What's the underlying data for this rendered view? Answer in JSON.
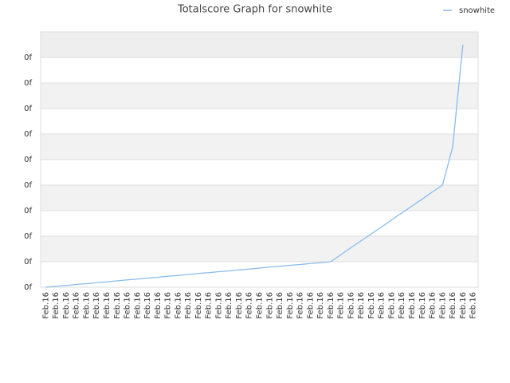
{
  "chart_data": {
    "type": "line",
    "title": "Totalscore Graph for snowhite",
    "categories": [
      "Feb.16",
      "Feb.16",
      "Feb.16",
      "Feb.16",
      "Feb.16",
      "Feb.16",
      "Feb.16",
      "Feb.16",
      "Feb.16",
      "Feb.16",
      "Feb.16",
      "Feb.16",
      "Feb.16",
      "Feb.16",
      "Feb.16",
      "Feb.16",
      "Feb.16",
      "Feb.16",
      "Feb.16",
      "Feb.16",
      "Feb.16",
      "Feb.16",
      "Feb.16",
      "Feb.16",
      "Feb.16",
      "Feb.16",
      "Feb.16",
      "Feb.16",
      "Feb.16",
      "Feb.16",
      "Feb.16",
      "Feb.16",
      "Feb.16",
      "Feb.16",
      "Feb.16",
      "Feb.16",
      "Feb.16",
      "Feb.16",
      "Feb.16",
      "Feb.16",
      "Feb.16",
      "Feb.16",
      "Feb.16"
    ],
    "series": [
      {
        "name": "snowhite",
        "color": "#88bbee",
        "values": [
          0,
          0.04,
          0.07,
          0.11,
          0.14,
          0.18,
          0.21,
          0.25,
          0.29,
          0.32,
          0.36,
          0.39,
          0.43,
          0.46,
          0.5,
          0.54,
          0.57,
          0.61,
          0.64,
          0.68,
          0.71,
          0.75,
          0.79,
          0.82,
          0.86,
          0.89,
          0.93,
          0.96,
          1,
          1.27,
          1.55,
          1.82,
          2.09,
          2.36,
          2.64,
          2.91,
          3.18,
          3.45,
          3.73,
          4,
          5.5,
          9.5,
          null
        ]
      }
    ],
    "ylim": [
      0,
      10
    ],
    "yticks": [
      {
        "value": 0,
        "label": "0f"
      },
      {
        "value": 1,
        "label": "0f"
      },
      {
        "value": 2,
        "label": "0f"
      },
      {
        "value": 3,
        "label": "0f"
      },
      {
        "value": 4,
        "label": "0f"
      },
      {
        "value": 5,
        "label": "0f"
      },
      {
        "value": 6,
        "label": "0f"
      },
      {
        "value": 7,
        "label": "0f"
      },
      {
        "value": 8,
        "label": "0f"
      },
      {
        "value": 9,
        "label": "0f"
      }
    ],
    "grid": true,
    "legend": "top-right"
  }
}
